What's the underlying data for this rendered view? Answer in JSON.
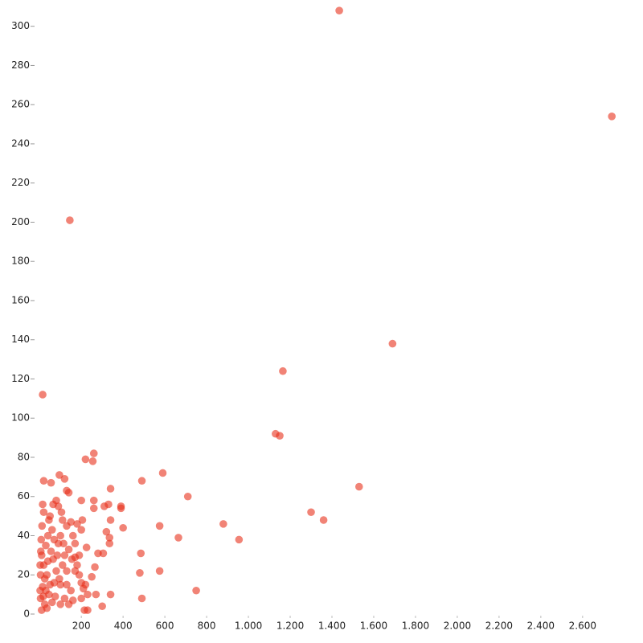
{
  "chart_data": {
    "type": "scatter",
    "color": "#e8311a",
    "x": [
      1435,
      2740,
      145,
      1690,
      1165,
      15,
      1130,
      1150,
      1530,
      1300,
      1360,
      880,
      955,
      750,
      710,
      590,
      490,
      575,
      665,
      575,
      480,
      485,
      490,
      340,
      260,
      255,
      220,
      390,
      390,
      400,
      330,
      310,
      340,
      320,
      335,
      335,
      305,
      280,
      225,
      265,
      250,
      340,
      300,
      230,
      215,
      260,
      260,
      200,
      205,
      200,
      180,
      150,
      140,
      130,
      120,
      95,
      55,
      20,
      15,
      20,
      65,
      90,
      80,
      105,
      110,
      130,
      170,
      160,
      180,
      190,
      200,
      210,
      220,
      230,
      270,
      200,
      160,
      140,
      120,
      100,
      130,
      150,
      170,
      190,
      120,
      90,
      70,
      60,
      40,
      30,
      10,
      20,
      35,
      50,
      65,
      80,
      95,
      110,
      140,
      155,
      170,
      45,
      25,
      10,
      5,
      15,
      30,
      60,
      75,
      5,
      8,
      12,
      45,
      50,
      100,
      115,
      55,
      40,
      25,
      18,
      35,
      70,
      85,
      130,
      100,
      3,
      3,
      6
    ],
    "values": [
      308,
      254,
      201,
      138,
      124,
      112,
      92,
      91,
      65,
      52,
      48,
      46,
      38,
      12,
      60,
      72,
      68,
      45,
      39,
      22,
      21,
      31,
      8,
      64,
      82,
      78,
      79,
      55,
      54,
      44,
      56,
      55,
      48,
      42,
      39,
      36,
      31,
      31,
      34,
      24,
      19,
      10,
      4,
      2,
      2,
      58,
      54,
      58,
      48,
      43,
      46,
      47,
      62,
      63,
      69,
      71,
      67,
      68,
      56,
      52,
      56,
      55,
      58,
      52,
      48,
      45,
      36,
      40,
      25,
      20,
      16,
      13,
      15,
      10,
      10,
      8,
      7,
      5,
      8,
      15,
      15,
      12,
      22,
      30,
      30,
      36,
      38,
      43,
      40,
      35,
      30,
      25,
      20,
      15,
      28,
      22,
      18,
      25,
      33,
      28,
      29,
      10,
      5,
      2,
      8,
      14,
      12,
      6,
      9,
      20,
      38,
      45,
      48,
      50,
      40,
      36,
      32,
      27,
      18,
      9,
      3,
      16,
      30,
      22,
      5,
      12,
      25,
      32
    ],
    "xlim": [
      -20,
      2870
    ],
    "ylim": [
      0,
      313
    ],
    "xticks": [
      200,
      400,
      600,
      800,
      {
        "value": 1000,
        "label": "1.000"
      },
      {
        "value": 1200,
        "label": "1.200"
      },
      {
        "value": 1400,
        "label": "1.400"
      },
      {
        "value": 1600,
        "label": "1.600"
      },
      {
        "value": 1800,
        "label": "1.800"
      },
      {
        "value": 2000,
        "label": "2.000"
      },
      {
        "value": 2200,
        "label": "2.200"
      },
      {
        "value": 2400,
        "label": "2.400"
      },
      {
        "value": 2600,
        "label": "2.600"
      }
    ],
    "yticks": [
      0,
      20,
      40,
      60,
      80,
      100,
      120,
      140,
      160,
      180,
      200,
      220,
      240,
      260,
      280,
      300
    ]
  }
}
